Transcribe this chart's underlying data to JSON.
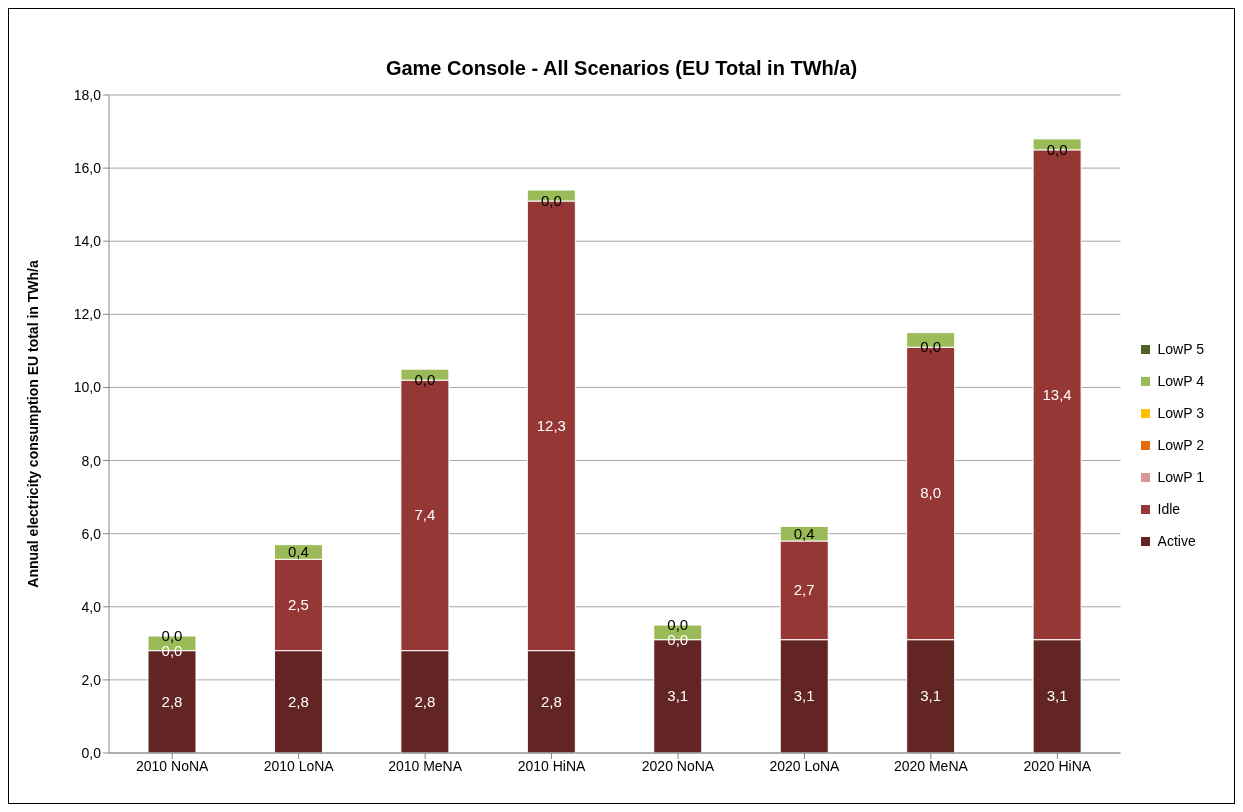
{
  "chart_data": {
    "type": "bar",
    "title": "Game Console - All Scenarios (EU Total in TWh/a)",
    "ylabel": "Annual electricity consumption EU total in TWh/a",
    "categories": [
      "2010 NoNA",
      "2010 LoNA",
      "2010 MeNA",
      "2010 HiNA",
      "2020 NoNA",
      "2020 LoNA",
      "2020 MeNA",
      "2020 HiNA"
    ],
    "stacked": true,
    "grid": "y",
    "legend": "right",
    "ylim": [
      0,
      18
    ],
    "yticks": [
      {
        "value": 0,
        "label": "0,0"
      },
      {
        "value": 2,
        "label": "2,0"
      },
      {
        "value": 4,
        "label": "4,0"
      },
      {
        "value": 6,
        "label": "6,0"
      },
      {
        "value": 8,
        "label": "8,0"
      },
      {
        "value": 10,
        "label": "10,0"
      },
      {
        "value": 12,
        "label": "12,0"
      },
      {
        "value": 14,
        "label": "14,0"
      },
      {
        "value": 16,
        "label": "16,0"
      },
      {
        "value": 18,
        "label": "18,0"
      }
    ],
    "series": [
      {
        "name": "Active",
        "color": "#632523",
        "values": [
          2.8,
          2.8,
          2.8,
          2.8,
          3.1,
          3.1,
          3.1,
          3.1
        ],
        "value_labels": [
          "2,8",
          "2,8",
          "2,8",
          "2,8",
          "3,1",
          "3,1",
          "3,1",
          "3,1"
        ]
      },
      {
        "name": "Idle",
        "color": "#953735",
        "values": [
          0,
          2.5,
          7.4,
          12.3,
          0,
          2.7,
          8.0,
          13.4
        ],
        "value_labels": [
          "0,0",
          "2,5",
          "7,4",
          "12,3",
          "0,0",
          "2,7",
          "8,0",
          "13,4"
        ]
      },
      {
        "name": "LowP 1",
        "color": "#d99694",
        "values": [
          0,
          0,
          0,
          0,
          0,
          0,
          0,
          0
        ],
        "value_labels": [
          "0,0",
          null,
          "0,0",
          "0,0",
          "0,0",
          null,
          "0,0",
          "0,0"
        ]
      },
      {
        "name": "LowP 2",
        "color": "#e46c0a",
        "values": [
          0,
          0,
          0,
          0,
          0,
          0,
          0,
          0
        ]
      },
      {
        "name": "LowP 3",
        "color": "#ffc000",
        "values": [
          0,
          0,
          0,
          0,
          0,
          0,
          0,
          0
        ]
      },
      {
        "name": "LowP 4",
        "color": "#9bbb59",
        "values": [
          0.4,
          0.4,
          0.3,
          0.3,
          0.4,
          0.4,
          0.4,
          0.3
        ],
        "value_labels": [
          null,
          "0,4",
          null,
          null,
          null,
          "0,4",
          null,
          null
        ]
      },
      {
        "name": "LowP 5",
        "color": "#4f6228",
        "values": [
          0,
          0,
          0,
          0,
          0,
          0,
          0,
          0
        ]
      }
    ]
  }
}
